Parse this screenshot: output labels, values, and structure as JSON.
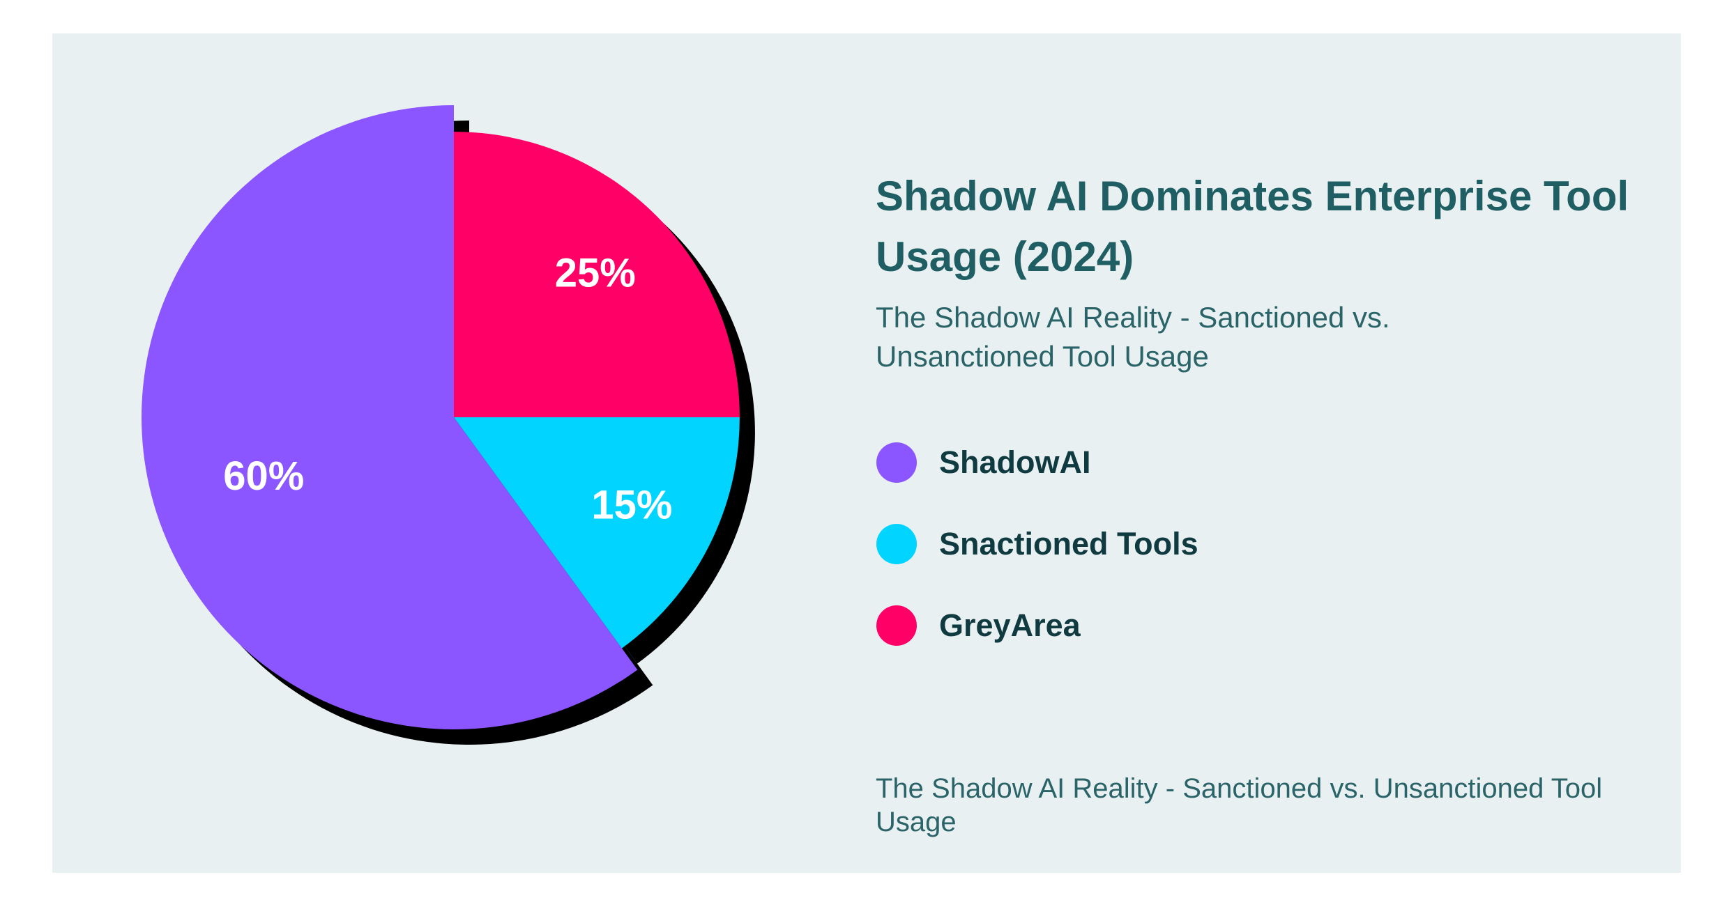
{
  "chart_data": {
    "type": "pie",
    "title": "Shadow AI Dominates Enterprise Tool Usage (2024)",
    "subtitle": "The Shadow AI Reality - Sanctioned vs. Unsanctioned Tool Usage",
    "caption": "The Shadow AI Reality - Sanctioned vs. Unsanctioned Tool Usage",
    "categories": [
      "ShadowAI",
      "Snactioned Tools",
      "GreyArea"
    ],
    "values": [
      60,
      15,
      25
    ],
    "value_labels": [
      "60%",
      "15%",
      "25%"
    ],
    "colors": [
      "#8b55ff",
      "#00d4ff",
      "#ff0066"
    ]
  }
}
